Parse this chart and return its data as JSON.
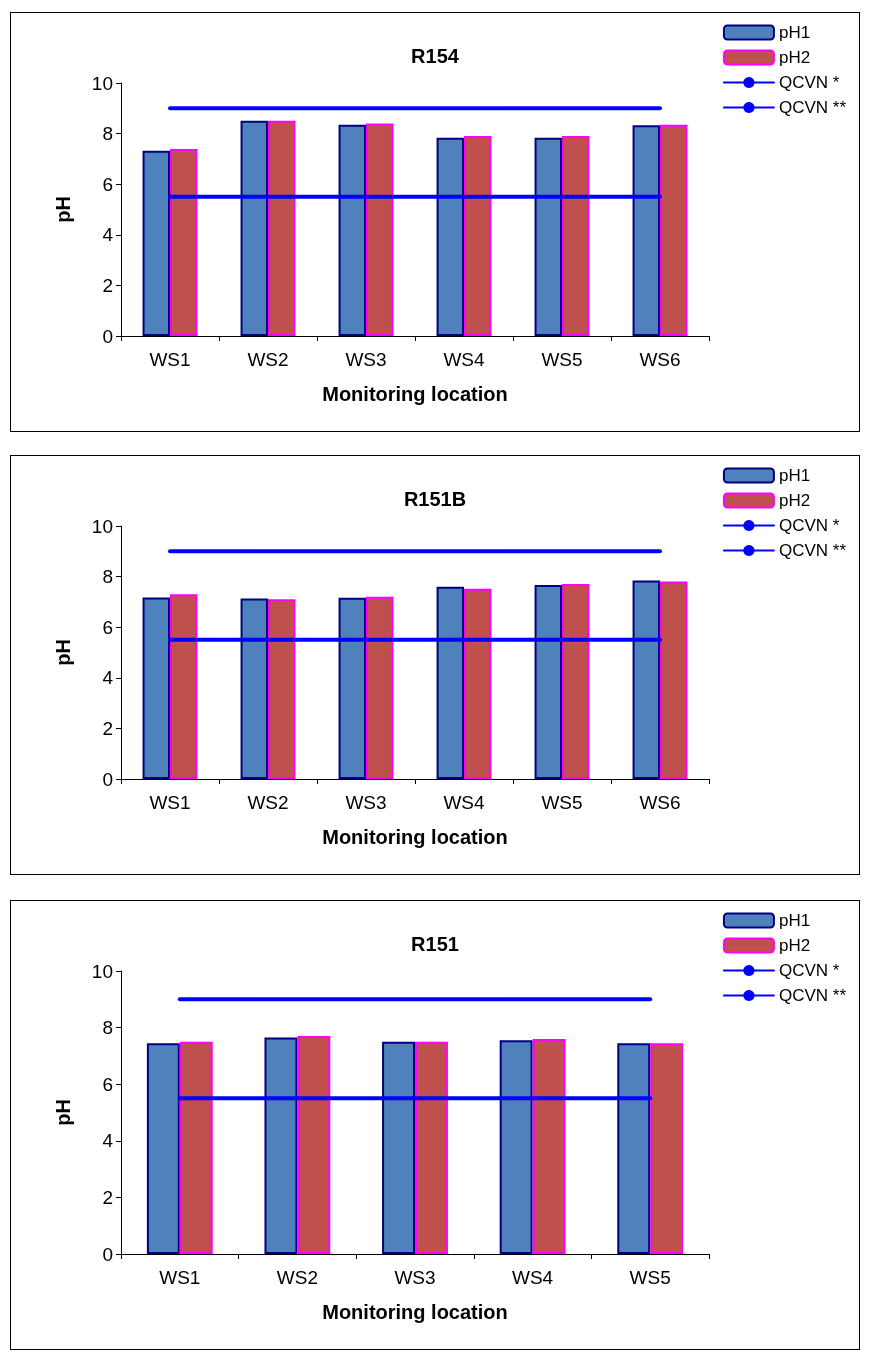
{
  "chart_data": [
    {
      "type": "bar",
      "title": "R154",
      "xlabel": "Monitoring location",
      "ylabel": "pH",
      "categories": [
        "WS1",
        "WS2",
        "WS3",
        "WS4",
        "WS5",
        "WS6"
      ],
      "ylim": [
        0,
        10
      ],
      "yticks": [
        0,
        2,
        4,
        6,
        8,
        10
      ],
      "grid": false,
      "legend": "top right",
      "series": [
        {
          "name": "pH1",
          "color": "#4f81bd",
          "values": [
            7.32,
            8.51,
            8.35,
            7.84,
            7.84,
            8.33
          ]
        },
        {
          "name": "pH2",
          "color": "#c0504d",
          "values": [
            7.39,
            8.51,
            8.4,
            7.91,
            7.91,
            8.35
          ]
        },
        {
          "name": "QCVN *",
          "type": "line",
          "color": "#0000ff",
          "marker": "none",
          "values": [
            9,
            9,
            9,
            9,
            9,
            9
          ]
        },
        {
          "name": "QCVN **",
          "type": "line",
          "color": "#0000ff",
          "marker": "none",
          "values": [
            5.5,
            5.5,
            5.5,
            5.5,
            5.5,
            5.5
          ]
        }
      ]
    },
    {
      "type": "bar",
      "title": "R151B",
      "xlabel": "Monitoring location",
      "ylabel": "pH",
      "categories": [
        "WS1",
        "WS2",
        "WS3",
        "WS4",
        "WS5",
        "WS6"
      ],
      "ylim": [
        0,
        10
      ],
      "yticks": [
        0,
        2,
        4,
        6,
        8,
        10
      ],
      "grid": false,
      "legend": "top right",
      "series": [
        {
          "name": "pH1",
          "color": "#4f81bd",
          "values": [
            7.17,
            7.13,
            7.16,
            7.6,
            7.67,
            7.85
          ]
        },
        {
          "name": "pH2",
          "color": "#c0504d",
          "values": [
            7.3,
            7.1,
            7.2,
            7.52,
            7.71,
            7.81
          ]
        },
        {
          "name": "QCVN *",
          "type": "line",
          "color": "#0000ff",
          "marker": "none",
          "values": [
            9,
            9,
            9,
            9,
            9,
            9
          ]
        },
        {
          "name": "QCVN **",
          "type": "line",
          "color": "#0000ff",
          "marker": "none",
          "values": [
            5.5,
            5.5,
            5.5,
            5.5,
            5.5,
            5.5
          ]
        }
      ]
    },
    {
      "type": "bar",
      "title": "R151",
      "xlabel": "Monitoring location",
      "ylabel": "pH",
      "categories": [
        "WS1",
        "WS2",
        "WS3",
        "WS4",
        "WS5"
      ],
      "ylim": [
        0,
        10
      ],
      "yticks": [
        0,
        2,
        4,
        6,
        8,
        10
      ],
      "grid": false,
      "legend": "top right",
      "series": [
        {
          "name": "pH1",
          "color": "#4f81bd",
          "values": [
            7.45,
            7.65,
            7.5,
            7.55,
            7.45
          ]
        },
        {
          "name": "pH2",
          "color": "#c0504d",
          "values": [
            7.5,
            7.7,
            7.5,
            7.6,
            7.45
          ]
        },
        {
          "name": "QCVN *",
          "type": "line",
          "color": "#0000ff",
          "marker": "none",
          "values": [
            9,
            9,
            9,
            9,
            9
          ]
        },
        {
          "name": "QCVN **",
          "type": "line",
          "color": "#0000ff",
          "marker": "none",
          "values": [
            5.5,
            5.5,
            5.5,
            5.5,
            5.5
          ]
        }
      ]
    }
  ]
}
